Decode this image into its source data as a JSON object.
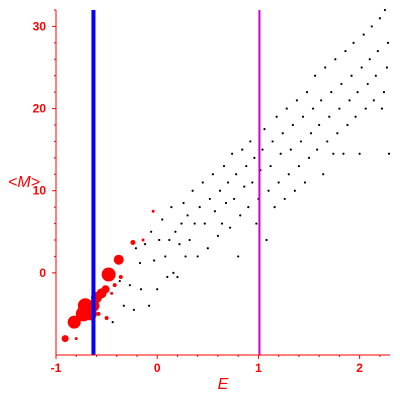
{
  "chart_data": {
    "type": "scatter",
    "title": "",
    "xlabel": "E",
    "ylabel": "<M>",
    "xlim": [
      -1.0,
      2.3
    ],
    "ylim": [
      -10,
      32
    ],
    "grid": false,
    "x_ticks": [
      -1,
      0,
      1,
      2
    ],
    "y_ticks": [
      0,
      10,
      20,
      30
    ],
    "colors": {
      "axis": "#ff0000",
      "label": "#ff0000",
      "small_points": "#000000",
      "large_points": "#ff0000"
    },
    "vertical_lines": [
      {
        "x": -0.63,
        "color": "#0000ff"
      },
      {
        "x": 1.01,
        "color": "#cc00cc"
      }
    ],
    "series": [
      {
        "color": "#ff0000",
        "points": [
          {
            "x": -0.91,
            "y": -8.0,
            "size": 3.5
          },
          {
            "x": -0.82,
            "y": -6.0,
            "size": 6.5
          },
          {
            "x": -0.8,
            "y": -8.0,
            "size": 1.5
          },
          {
            "x": -0.73,
            "y": -5.0,
            "size": 7.5
          },
          {
            "x": -0.71,
            "y": -4.0,
            "size": 7.5
          },
          {
            "x": -0.66,
            "y": -5.0,
            "size": 6.5
          },
          {
            "x": -0.63,
            "y": -4.0,
            "size": 6.0
          },
          {
            "x": -0.6,
            "y": -3.0,
            "size": 5.5
          },
          {
            "x": -0.58,
            "y": -5.0,
            "size": 2.0
          },
          {
            "x": -0.55,
            "y": -2.5,
            "size": 5.0
          },
          {
            "x": -0.51,
            "y": -2.0,
            "size": 4.0
          },
          {
            "x": -0.5,
            "y": -5.5,
            "size": 2.0
          },
          {
            "x": -0.48,
            "y": -0.2,
            "size": 7.0
          },
          {
            "x": -0.45,
            "y": -2.5,
            "size": 1.5
          },
          {
            "x": -0.42,
            "y": -1.5,
            "size": 2.0
          },
          {
            "x": -0.38,
            "y": 1.6,
            "size": 5.0
          },
          {
            "x": -0.36,
            "y": -0.5,
            "size": 2.0
          },
          {
            "x": -0.24,
            "y": 3.7,
            "size": 2.5
          },
          {
            "x": -0.14,
            "y": 4.0,
            "size": 1.5
          },
          {
            "x": -0.04,
            "y": 7.5,
            "size": 1.5
          }
        ]
      },
      {
        "color": "#000000",
        "points": [
          {
            "x": -0.44,
            "y": -6.0
          },
          {
            "x": -0.37,
            "y": -1.0
          },
          {
            "x": -0.33,
            "y": -4.0
          },
          {
            "x": -0.27,
            "y": -1.5
          },
          {
            "x": -0.23,
            "y": -4.5
          },
          {
            "x": -0.21,
            "y": 3.0
          },
          {
            "x": -0.17,
            "y": 1.2
          },
          {
            "x": -0.16,
            "y": -2.0
          },
          {
            "x": -0.12,
            "y": 3.5
          },
          {
            "x": -0.08,
            "y": -4.0
          },
          {
            "x": -0.06,
            "y": 5.0
          },
          {
            "x": -0.03,
            "y": 1.5
          },
          {
            "x": 0.0,
            "y": -2.0
          },
          {
            "x": 0.02,
            "y": 4.0
          },
          {
            "x": 0.05,
            "y": 6.5
          },
          {
            "x": 0.08,
            "y": 2.0
          },
          {
            "x": 0.1,
            "y": -0.5
          },
          {
            "x": 0.12,
            "y": 4.0
          },
          {
            "x": 0.14,
            "y": 8.0
          },
          {
            "x": 0.16,
            "y": 0.0
          },
          {
            "x": 0.18,
            "y": 5.0
          },
          {
            "x": 0.2,
            "y": -0.5
          },
          {
            "x": 0.22,
            "y": 3.5
          },
          {
            "x": 0.24,
            "y": 6.0
          },
          {
            "x": 0.26,
            "y": 8.5
          },
          {
            "x": 0.28,
            "y": 2.0
          },
          {
            "x": 0.3,
            "y": 7.0
          },
          {
            "x": 0.32,
            "y": 4.0
          },
          {
            "x": 0.35,
            "y": 10.0
          },
          {
            "x": 0.37,
            "y": 6.0
          },
          {
            "x": 0.4,
            "y": 2.0
          },
          {
            "x": 0.42,
            "y": 8.0
          },
          {
            "x": 0.45,
            "y": 11.0
          },
          {
            "x": 0.47,
            "y": 6.0
          },
          {
            "x": 0.5,
            "y": 3.0
          },
          {
            "x": 0.52,
            "y": 9.0
          },
          {
            "x": 0.55,
            "y": 12.0
          },
          {
            "x": 0.57,
            "y": 7.5
          },
          {
            "x": 0.6,
            "y": 4.5
          },
          {
            "x": 0.62,
            "y": 10.0
          },
          {
            "x": 0.64,
            "y": 6.0
          },
          {
            "x": 0.66,
            "y": 13.0
          },
          {
            "x": 0.68,
            "y": 8.5
          },
          {
            "x": 0.7,
            "y": 11.0
          },
          {
            "x": 0.72,
            "y": 5.5
          },
          {
            "x": 0.74,
            "y": 14.5
          },
          {
            "x": 0.76,
            "y": 9.0
          },
          {
            "x": 0.78,
            "y": 12.0
          },
          {
            "x": 0.8,
            "y": 2.0
          },
          {
            "x": 0.82,
            "y": 7.0
          },
          {
            "x": 0.84,
            "y": 15.0
          },
          {
            "x": 0.86,
            "y": 10.5
          },
          {
            "x": 0.88,
            "y": 13.0
          },
          {
            "x": 0.9,
            "y": 8.0
          },
          {
            "x": 0.92,
            "y": 16.0
          },
          {
            "x": 0.94,
            "y": 11.0
          },
          {
            "x": 0.96,
            "y": 14.0
          },
          {
            "x": 0.98,
            "y": 6.0
          },
          {
            "x": 1.0,
            "y": 9.0
          },
          {
            "x": 1.02,
            "y": 12.5
          },
          {
            "x": 1.04,
            "y": 15.0
          },
          {
            "x": 1.06,
            "y": 17.5
          },
          {
            "x": 1.08,
            "y": 4.0
          },
          {
            "x": 1.1,
            "y": 10.0
          },
          {
            "x": 1.12,
            "y": 13.0
          },
          {
            "x": 1.14,
            "y": 16.0
          },
          {
            "x": 1.16,
            "y": 8.0
          },
          {
            "x": 1.18,
            "y": 19.0
          },
          {
            "x": 1.2,
            "y": 11.0
          },
          {
            "x": 1.22,
            "y": 14.5
          },
          {
            "x": 1.24,
            "y": 17.0
          },
          {
            "x": 1.26,
            "y": 9.0
          },
          {
            "x": 1.28,
            "y": 20.0
          },
          {
            "x": 1.3,
            "y": 12.0
          },
          {
            "x": 1.32,
            "y": 15.0
          },
          {
            "x": 1.34,
            "y": 18.0
          },
          {
            "x": 1.36,
            "y": 10.0
          },
          {
            "x": 1.38,
            "y": 21.0
          },
          {
            "x": 1.4,
            "y": 13.0
          },
          {
            "x": 1.42,
            "y": 16.0
          },
          {
            "x": 1.44,
            "y": 19.0
          },
          {
            "x": 1.46,
            "y": 11.0
          },
          {
            "x": 1.48,
            "y": 22.0
          },
          {
            "x": 1.5,
            "y": 14.0
          },
          {
            "x": 1.52,
            "y": 17.0
          },
          {
            "x": 1.54,
            "y": 20.0
          },
          {
            "x": 1.56,
            "y": 24.0
          },
          {
            "x": 1.58,
            "y": 15.0
          },
          {
            "x": 1.6,
            "y": 18.0
          },
          {
            "x": 1.62,
            "y": 21.0
          },
          {
            "x": 1.64,
            "y": 12.0
          },
          {
            "x": 1.66,
            "y": 25.0
          },
          {
            "x": 1.68,
            "y": 16.0
          },
          {
            "x": 1.7,
            "y": 19.0
          },
          {
            "x": 1.72,
            "y": 22.0
          },
          {
            "x": 1.74,
            "y": 14.5
          },
          {
            "x": 1.76,
            "y": 26.0
          },
          {
            "x": 1.78,
            "y": 17.0
          },
          {
            "x": 1.8,
            "y": 20.0
          },
          {
            "x": 1.82,
            "y": 23.0
          },
          {
            "x": 1.84,
            "y": 14.5
          },
          {
            "x": 1.86,
            "y": 27.0
          },
          {
            "x": 1.88,
            "y": 18.0
          },
          {
            "x": 1.9,
            "y": 21.0
          },
          {
            "x": 1.92,
            "y": 24.0
          },
          {
            "x": 1.94,
            "y": 28.0
          },
          {
            "x": 1.96,
            "y": 19.0
          },
          {
            "x": 1.98,
            "y": 22.0
          },
          {
            "x": 2.0,
            "y": 14.5
          },
          {
            "x": 2.02,
            "y": 25.0
          },
          {
            "x": 2.04,
            "y": 29.0
          },
          {
            "x": 2.06,
            "y": 20.0
          },
          {
            "x": 2.08,
            "y": 23.0
          },
          {
            "x": 2.1,
            "y": 26.0
          },
          {
            "x": 2.12,
            "y": 30.0
          },
          {
            "x": 2.14,
            "y": 21.0
          },
          {
            "x": 2.16,
            "y": 24.0
          },
          {
            "x": 2.18,
            "y": 27.0
          },
          {
            "x": 2.2,
            "y": 31.0
          },
          {
            "x": 2.22,
            "y": 20.0
          },
          {
            "x": 2.24,
            "y": 22.0
          },
          {
            "x": 2.25,
            "y": 32.0
          },
          {
            "x": 2.27,
            "y": 25.0
          },
          {
            "x": 2.28,
            "y": 28.0
          },
          {
            "x": 2.29,
            "y": 14.5
          }
        ]
      }
    ]
  }
}
